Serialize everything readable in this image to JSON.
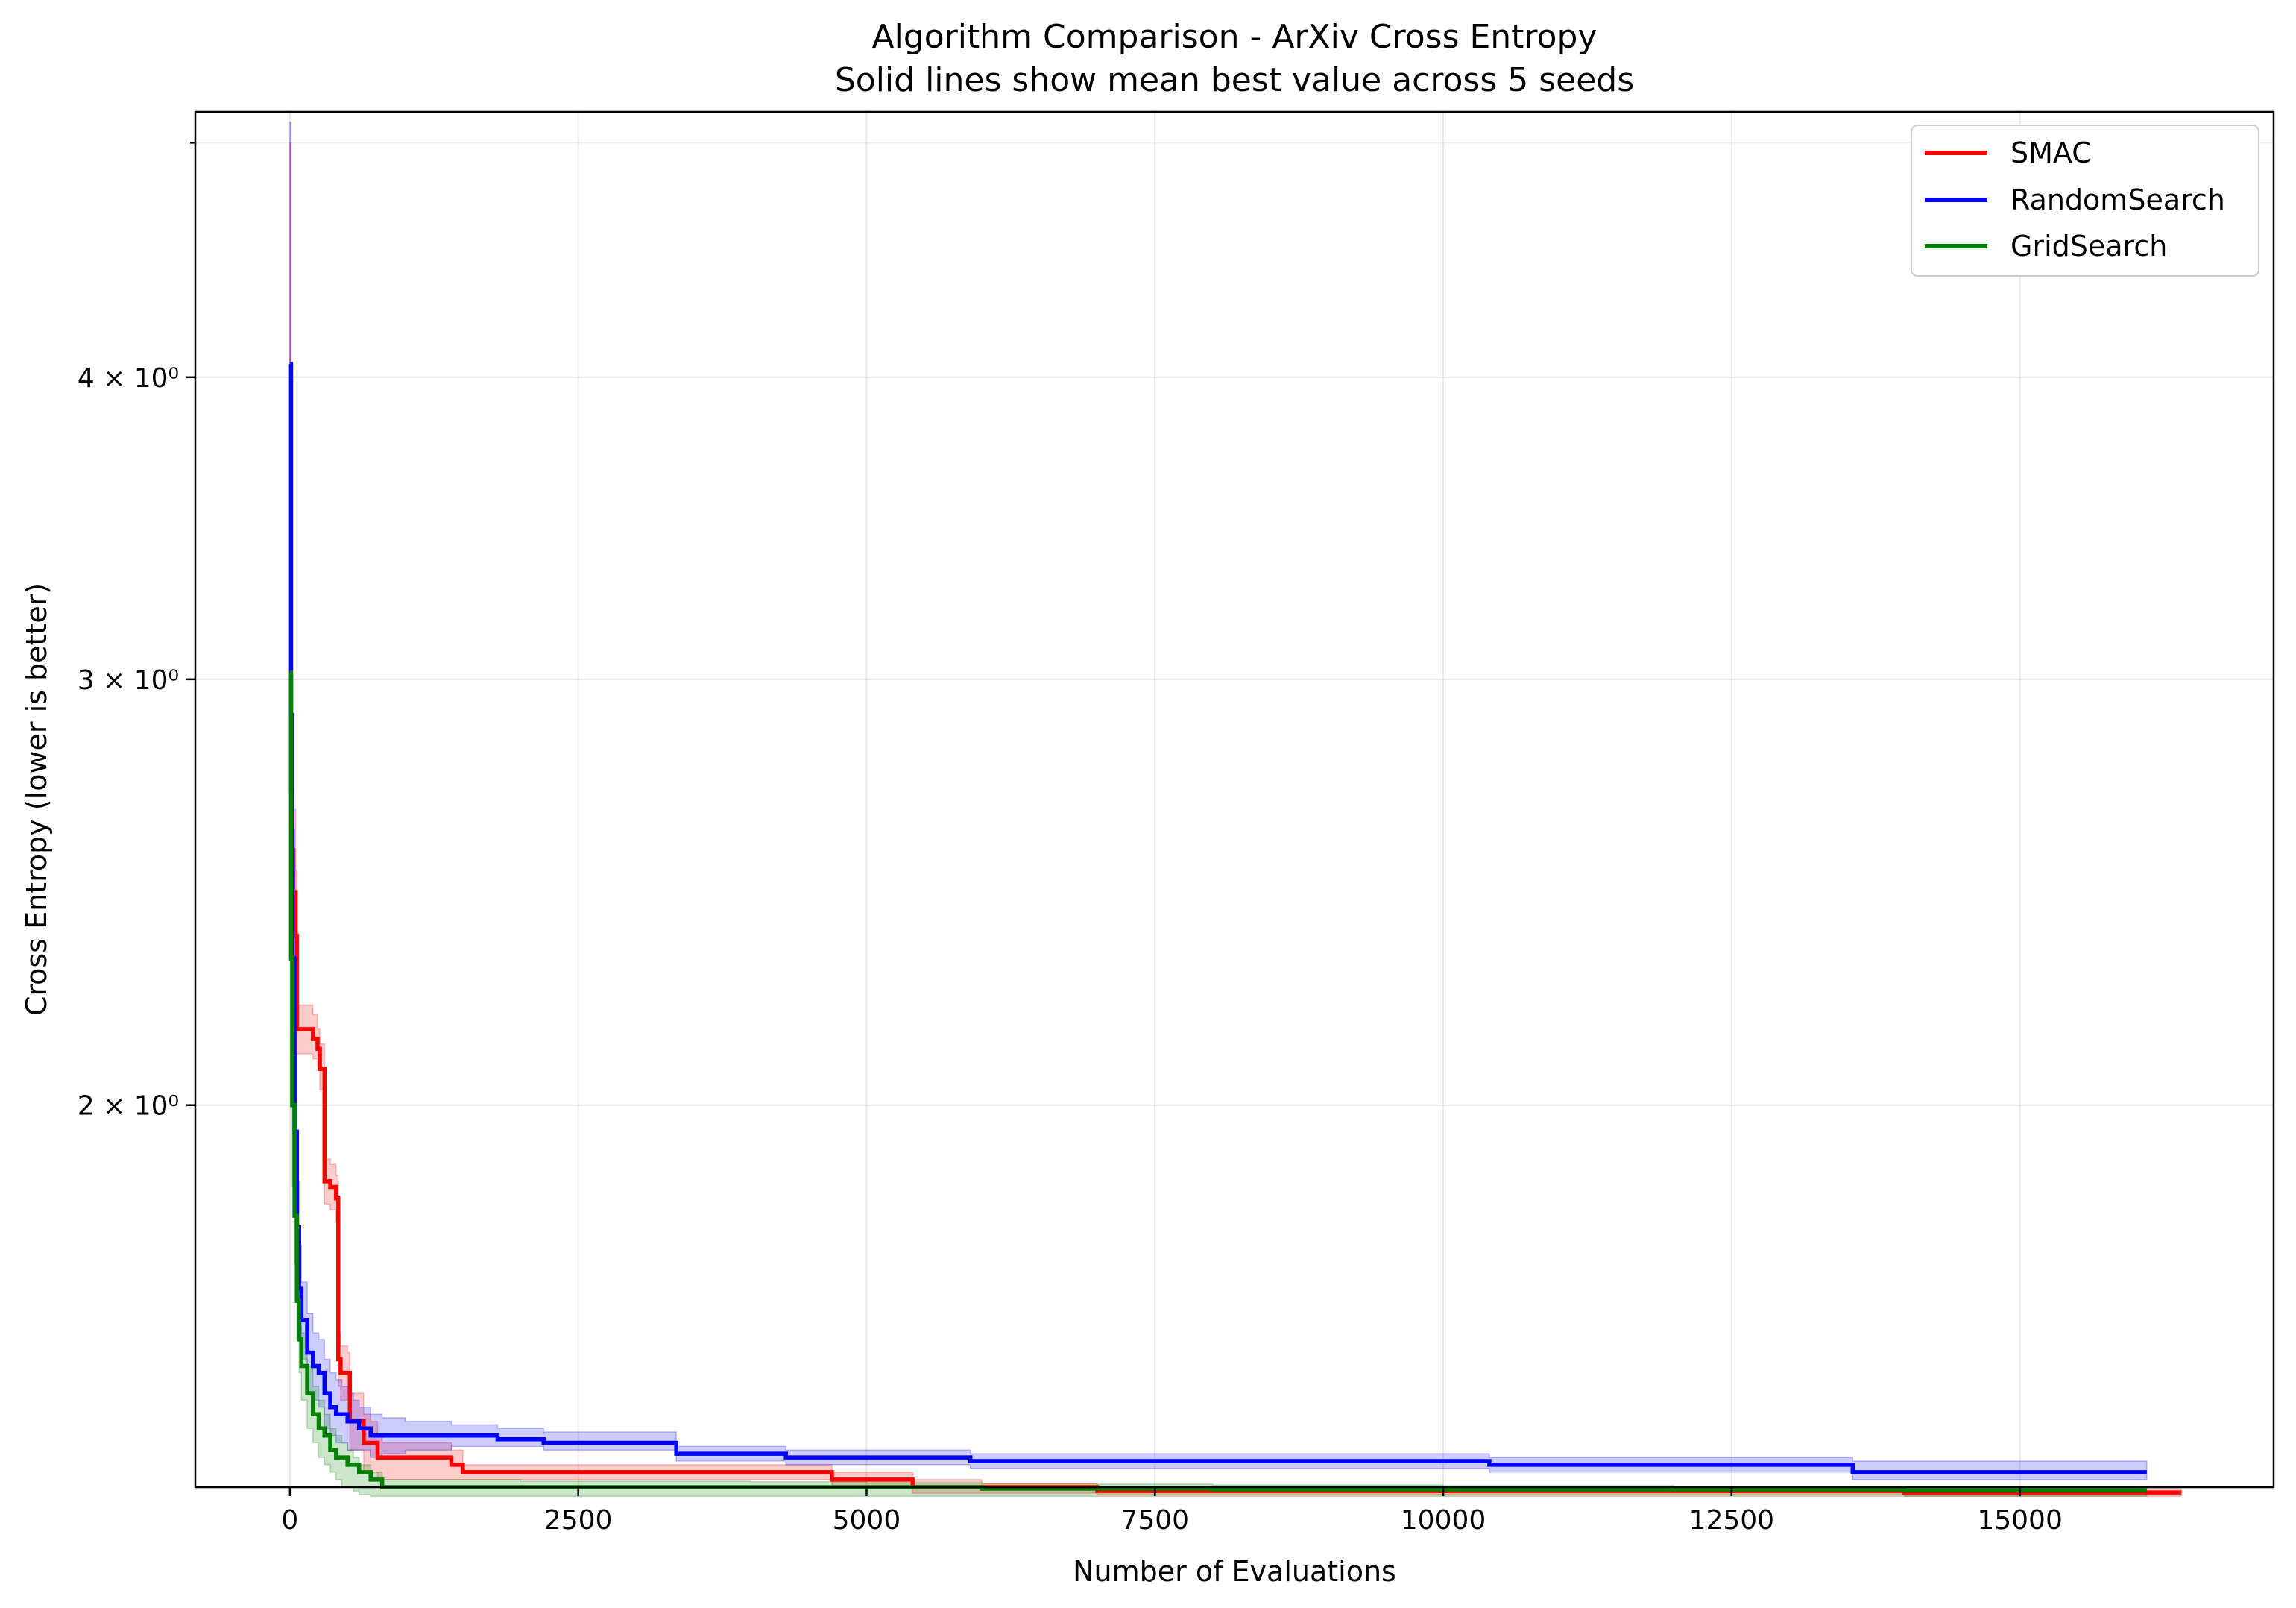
{
  "chart_data": {
    "type": "line",
    "title": "Algorithm Comparison - ArXiv Cross Entropy",
    "subtitle": "Solid lines show mean best value across 5 seeds",
    "xlabel": "Number of Evaluations",
    "ylabel": "Cross Entropy (lower is better)",
    "xlim": [
      -820,
      17200
    ],
    "ylim": [
      1.39,
      5.15
    ],
    "yscale": "log",
    "grid": true,
    "legend_position": "top-right",
    "x_ticks": [
      {
        "value": 0,
        "label": "0"
      },
      {
        "value": 2500,
        "label": "2500"
      },
      {
        "value": 5000,
        "label": "5000"
      },
      {
        "value": 7500,
        "label": "7500"
      },
      {
        "value": 10000,
        "label": "10000"
      },
      {
        "value": 12500,
        "label": "12500"
      },
      {
        "value": 15000,
        "label": "15000"
      }
    ],
    "y_ticks": [
      {
        "value": 2,
        "label": "2 × 10⁰"
      },
      {
        "value": 3,
        "label": "3 × 10⁰"
      },
      {
        "value": 4,
        "label": "4 × 10⁰"
      }
    ],
    "y_minor_ticks": [
      5
    ],
    "series": [
      {
        "name": "SMAC",
        "color": "#ff0000",
        "x": [
          0,
          10,
          20,
          30,
          50,
          60,
          100,
          150,
          200,
          240,
          260,
          300,
          320,
          350,
          400,
          420,
          440,
          480,
          500,
          520,
          600,
          640,
          700,
          760,
          800,
          1200,
          1400,
          1500,
          1800,
          2000,
          3000,
          4000,
          4600,
          4700,
          5000,
          5350,
          5400,
          6000,
          7000,
          8000,
          10000,
          12000,
          13000,
          14000,
          15000,
          16000,
          16400
        ],
        "y": [
          3.0,
          2.7,
          2.55,
          2.45,
          2.35,
          2.15,
          2.15,
          2.15,
          2.13,
          2.11,
          2.07,
          1.86,
          1.86,
          1.85,
          1.83,
          1.57,
          1.55,
          1.55,
          1.55,
          1.48,
          1.48,
          1.45,
          1.45,
          1.43,
          1.43,
          1.43,
          1.42,
          1.41,
          1.41,
          1.41,
          1.41,
          1.41,
          1.41,
          1.4,
          1.4,
          1.4,
          1.39,
          1.39,
          1.385,
          1.385,
          1.385,
          1.385,
          1.385,
          1.383,
          1.383,
          1.383,
          1.383
        ],
        "band_upper": [
          5.0,
          3.2,
          2.8,
          2.65,
          2.5,
          2.2,
          2.2,
          2.2,
          2.18,
          2.15,
          2.12,
          1.9,
          1.9,
          1.89,
          1.87,
          1.61,
          1.59,
          1.59,
          1.58,
          1.52,
          1.52,
          1.49,
          1.48,
          1.46,
          1.45,
          1.45,
          1.44,
          1.42,
          1.42,
          1.42,
          1.42,
          1.42,
          1.42,
          1.41,
          1.41,
          1.41,
          1.4,
          1.395,
          1.39,
          1.39,
          1.39,
          1.39,
          1.39,
          1.388,
          1.388,
          1.388,
          1.388
        ],
        "band_lower": [
          2.4,
          2.3,
          2.25,
          2.2,
          2.15,
          2.1,
          2.1,
          2.1,
          2.09,
          2.07,
          2.03,
          1.82,
          1.82,
          1.81,
          1.79,
          1.53,
          1.51,
          1.51,
          1.51,
          1.44,
          1.44,
          1.41,
          1.41,
          1.4,
          1.4,
          1.4,
          1.4,
          1.4,
          1.4,
          1.4,
          1.4,
          1.4,
          1.4,
          1.39,
          1.39,
          1.39,
          1.382,
          1.382,
          1.38,
          1.38,
          1.38,
          1.38,
          1.38,
          1.378,
          1.378,
          1.378,
          1.378
        ]
      },
      {
        "name": "RandomSearch",
        "color": "#0000ff",
        "x": [
          0,
          10,
          20,
          40,
          60,
          80,
          100,
          150,
          200,
          250,
          300,
          350,
          400,
          450,
          500,
          550,
          600,
          650,
          700,
          750,
          800,
          1000,
          1400,
          1800,
          2100,
          2200,
          2800,
          3300,
          3350,
          3600,
          4000,
          4200,
          4300,
          5000,
          5800,
          5900,
          7000,
          8000,
          9000,
          10000,
          10400,
          11000,
          12000,
          13000,
          13500,
          13550,
          14000,
          15000,
          16100
        ],
        "y": [
          4.05,
          2.9,
          2.3,
          1.95,
          1.78,
          1.68,
          1.63,
          1.58,
          1.56,
          1.55,
          1.52,
          1.5,
          1.49,
          1.49,
          1.48,
          1.48,
          1.47,
          1.47,
          1.46,
          1.46,
          1.46,
          1.46,
          1.46,
          1.455,
          1.455,
          1.45,
          1.45,
          1.45,
          1.435,
          1.435,
          1.435,
          1.435,
          1.43,
          1.43,
          1.43,
          1.425,
          1.425,
          1.425,
          1.425,
          1.425,
          1.42,
          1.42,
          1.42,
          1.42,
          1.42,
          1.41,
          1.41,
          1.41,
          1.41
        ],
        "band_upper": [
          5.1,
          3.4,
          2.6,
          2.1,
          1.86,
          1.75,
          1.69,
          1.64,
          1.61,
          1.6,
          1.57,
          1.55,
          1.54,
          1.53,
          1.52,
          1.51,
          1.5,
          1.5,
          1.49,
          1.49,
          1.485,
          1.48,
          1.475,
          1.47,
          1.47,
          1.465,
          1.465,
          1.465,
          1.445,
          1.445,
          1.445,
          1.445,
          1.44,
          1.44,
          1.44,
          1.435,
          1.435,
          1.435,
          1.435,
          1.435,
          1.43,
          1.43,
          1.43,
          1.43,
          1.43,
          1.425,
          1.425,
          1.425,
          1.425
        ],
        "band_lower": [
          3.0,
          2.4,
          2.0,
          1.8,
          1.7,
          1.62,
          1.57,
          1.52,
          1.51,
          1.5,
          1.47,
          1.46,
          1.45,
          1.45,
          1.44,
          1.44,
          1.44,
          1.44,
          1.43,
          1.43,
          1.435,
          1.44,
          1.445,
          1.445,
          1.445,
          1.44,
          1.44,
          1.44,
          1.425,
          1.425,
          1.425,
          1.425,
          1.42,
          1.42,
          1.42,
          1.415,
          1.415,
          1.415,
          1.415,
          1.415,
          1.41,
          1.41,
          1.41,
          1.41,
          1.41,
          1.4,
          1.4,
          1.4,
          1.4
        ]
      },
      {
        "name": "GridSearch",
        "color": "#008000",
        "x": [
          0,
          10,
          20,
          40,
          60,
          80,
          100,
          150,
          200,
          250,
          300,
          350,
          400,
          450,
          500,
          550,
          600,
          700,
          800,
          1000,
          2000,
          3000,
          4000,
          5000,
          6000,
          7000,
          8000,
          10000,
          12000,
          14000,
          16100
        ],
        "y": [
          3.02,
          2.3,
          2.0,
          1.8,
          1.66,
          1.6,
          1.56,
          1.52,
          1.49,
          1.47,
          1.46,
          1.44,
          1.43,
          1.43,
          1.42,
          1.42,
          1.41,
          1.4,
          1.39,
          1.39,
          1.39,
          1.39,
          1.39,
          1.39,
          1.388,
          1.388,
          1.387,
          1.387,
          1.387,
          1.386,
          1.386
        ],
        "band_upper": [
          3.05,
          2.5,
          2.15,
          1.88,
          1.72,
          1.65,
          1.61,
          1.56,
          1.53,
          1.51,
          1.49,
          1.47,
          1.46,
          1.45,
          1.44,
          1.43,
          1.42,
          1.41,
          1.4,
          1.4,
          1.398,
          1.398,
          1.397,
          1.396,
          1.395,
          1.394,
          1.393,
          1.392,
          1.391,
          1.39,
          1.39
        ],
        "band_lower": [
          2.5,
          2.1,
          1.85,
          1.72,
          1.6,
          1.55,
          1.51,
          1.47,
          1.45,
          1.43,
          1.42,
          1.41,
          1.4,
          1.39,
          1.39,
          1.385,
          1.38,
          1.378,
          1.378,
          1.378,
          1.378,
          1.378,
          1.378,
          1.378,
          1.378,
          1.378,
          1.378,
          1.378,
          1.378,
          1.378,
          1.378
        ]
      }
    ]
  }
}
